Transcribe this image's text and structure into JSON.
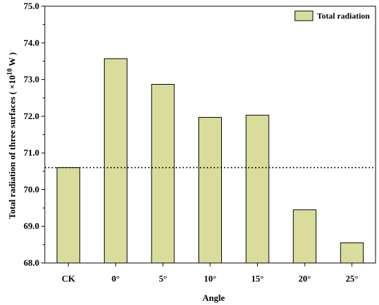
{
  "chart_data": {
    "type": "bar",
    "categories": [
      "CK",
      "0°",
      "5°",
      "10°",
      "15°",
      "20°",
      "25°"
    ],
    "series": [
      {
        "name": "Total radiation",
        "values": [
          70.6,
          73.57,
          72.87,
          71.97,
          72.03,
          69.45,
          68.55
        ]
      }
    ],
    "xlabel": "Angle",
    "ylabel_main": "Total radiation of three surfaces ( ×10",
    "ylabel_sup": "10",
    "ylabel_tail": " W )",
    "ylim": [
      68.0,
      75.0
    ],
    "yticks": [
      "68.0",
      "69.0",
      "70.0",
      "71.0",
      "72.0",
      "73.0",
      "74.0",
      "75.0"
    ],
    "reference_line": {
      "value": 70.6,
      "style": "dotted"
    },
    "legend": {
      "label": "Total radiation",
      "position": "top-right"
    },
    "grid": false,
    "bar_color": "#d9dc9b"
  }
}
